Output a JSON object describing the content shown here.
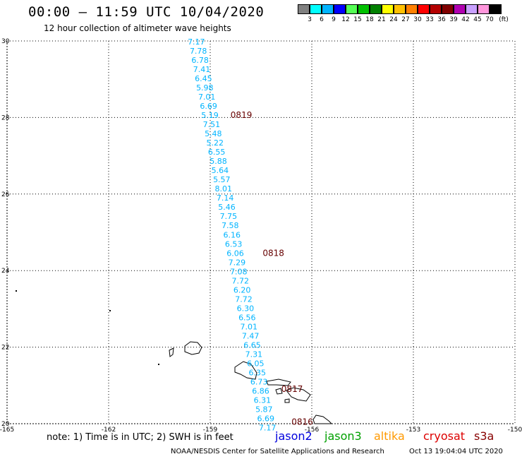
{
  "header": {
    "title": "00:00 – 11:59 UTC 10/04/2020",
    "subtitle": "12 hour collection of altimeter wave heights"
  },
  "colorbar": {
    "unit": "(ft)",
    "labels": [
      "3",
      "6",
      "9",
      "12",
      "15",
      "18",
      "21",
      "24",
      "27",
      "30",
      "33",
      "36",
      "39",
      "42",
      "45",
      "70"
    ],
    "colors": [
      "#808080",
      "#00ffff",
      "#00b4ff",
      "#0000ff",
      "#55ff55",
      "#00c000",
      "#008000",
      "#ffff00",
      "#ffc000",
      "#ff8000",
      "#ff0000",
      "#b40000",
      "#800000",
      "#b000b0",
      "#c8a0ff",
      "#ff96dc",
      "#000000"
    ]
  },
  "footer": {
    "note": "note: 1) Time is in UTC; 2) SWH is in feet",
    "satellites": [
      {
        "name": "jason2",
        "color": "#0000dd"
      },
      {
        "name": "jason3",
        "color": "#00a000"
      },
      {
        "name": "altika",
        "color": "#ff9900"
      },
      {
        "name": "cryosat",
        "color": "#dd0000"
      },
      {
        "name": "s3a",
        "color": "#880000"
      }
    ],
    "credit": "NOAA/NESDIS Center for Satellite Applications and Research",
    "date": "Oct 13 19:04:04 UTC 2020"
  },
  "chart_data": {
    "type": "scatter",
    "title": "00:00 – 11:59 UTC 10/04/2020",
    "xlim": [
      -165,
      -150
    ],
    "ylim": [
      20,
      30
    ],
    "x_ticks": [
      "-165",
      "-162",
      "-159",
      "-156",
      "-153",
      "-150"
    ],
    "y_ticks": [
      "20",
      "22",
      "24",
      "26",
      "28",
      "30"
    ],
    "grid": true,
    "point_color": "#00b4ff",
    "points": [
      {
        "lon": -159.41,
        "lat": 29.98,
        "value": "7.17"
      },
      {
        "lon": -159.35,
        "lat": 29.74,
        "value": "7.78"
      },
      {
        "lon": -159.3,
        "lat": 29.5,
        "value": "6.78"
      },
      {
        "lon": -159.25,
        "lat": 29.26,
        "value": "7.41"
      },
      {
        "lon": -159.2,
        "lat": 29.02,
        "value": "6.45"
      },
      {
        "lon": -159.16,
        "lat": 28.78,
        "value": "5.98"
      },
      {
        "lon": -159.1,
        "lat": 28.54,
        "value": "7.01"
      },
      {
        "lon": -159.05,
        "lat": 28.3,
        "value": "6.69"
      },
      {
        "lon": -159.01,
        "lat": 28.06,
        "value": "5.19"
      },
      {
        "lon": -158.96,
        "lat": 27.82,
        "value": "7.51"
      },
      {
        "lon": -158.91,
        "lat": 27.58,
        "value": "5.48"
      },
      {
        "lon": -158.86,
        "lat": 27.34,
        "value": "5.22"
      },
      {
        "lon": -158.81,
        "lat": 27.1,
        "value": "6.55"
      },
      {
        "lon": -158.76,
        "lat": 26.86,
        "value": "5.88"
      },
      {
        "lon": -158.71,
        "lat": 26.62,
        "value": "5.64"
      },
      {
        "lon": -158.66,
        "lat": 26.38,
        "value": "5.57"
      },
      {
        "lon": -158.61,
        "lat": 26.14,
        "value": "8.01"
      },
      {
        "lon": -158.56,
        "lat": 25.9,
        "value": "7.14"
      },
      {
        "lon": -158.51,
        "lat": 25.66,
        "value": "5.46"
      },
      {
        "lon": -158.46,
        "lat": 25.42,
        "value": "7.75"
      },
      {
        "lon": -158.41,
        "lat": 25.18,
        "value": "7.58"
      },
      {
        "lon": -158.36,
        "lat": 24.94,
        "value": "6.16"
      },
      {
        "lon": -158.31,
        "lat": 24.7,
        "value": "6.53"
      },
      {
        "lon": -158.26,
        "lat": 24.46,
        "value": "6.06"
      },
      {
        "lon": -158.21,
        "lat": 24.22,
        "value": "7.29"
      },
      {
        "lon": -158.16,
        "lat": 23.98,
        "value": "7.08"
      },
      {
        "lon": -158.11,
        "lat": 23.74,
        "value": "7.72"
      },
      {
        "lon": -158.06,
        "lat": 23.5,
        "value": "6.20"
      },
      {
        "lon": -158.01,
        "lat": 23.26,
        "value": "7.72"
      },
      {
        "lon": -157.96,
        "lat": 23.02,
        "value": "6.30"
      },
      {
        "lon": -157.91,
        "lat": 22.78,
        "value": "6.56"
      },
      {
        "lon": -157.86,
        "lat": 22.54,
        "value": "7.01"
      },
      {
        "lon": -157.81,
        "lat": 22.3,
        "value": "7.47"
      },
      {
        "lon": -157.76,
        "lat": 22.06,
        "value": "6.65"
      },
      {
        "lon": -157.71,
        "lat": 21.82,
        "value": "7.31"
      },
      {
        "lon": -157.66,
        "lat": 21.58,
        "value": "6.05"
      },
      {
        "lon": -157.61,
        "lat": 21.34,
        "value": "6.35"
      },
      {
        "lon": -157.56,
        "lat": 21.1,
        "value": "6.73"
      },
      {
        "lon": -157.51,
        "lat": 20.86,
        "value": "6.86"
      },
      {
        "lon": -157.46,
        "lat": 20.62,
        "value": "6.31"
      },
      {
        "lon": -157.41,
        "lat": 20.38,
        "value": "5.87"
      },
      {
        "lon": -157.36,
        "lat": 20.14,
        "value": "6.69"
      },
      {
        "lon": -157.31,
        "lat": 19.9,
        "value": "7.17"
      }
    ],
    "time_labels": [
      {
        "lon": -158.4,
        "lat": 28.06,
        "text": "0819",
        "color": "#660000"
      },
      {
        "lon": -157.45,
        "lat": 24.46,
        "text": "0818",
        "color": "#660000"
      },
      {
        "lon": -156.9,
        "lat": 20.9,
        "text": "0817",
        "color": "#660000"
      },
      {
        "lon": -156.6,
        "lat": 20.05,
        "text": "0816",
        "color": "#660000"
      }
    ]
  }
}
